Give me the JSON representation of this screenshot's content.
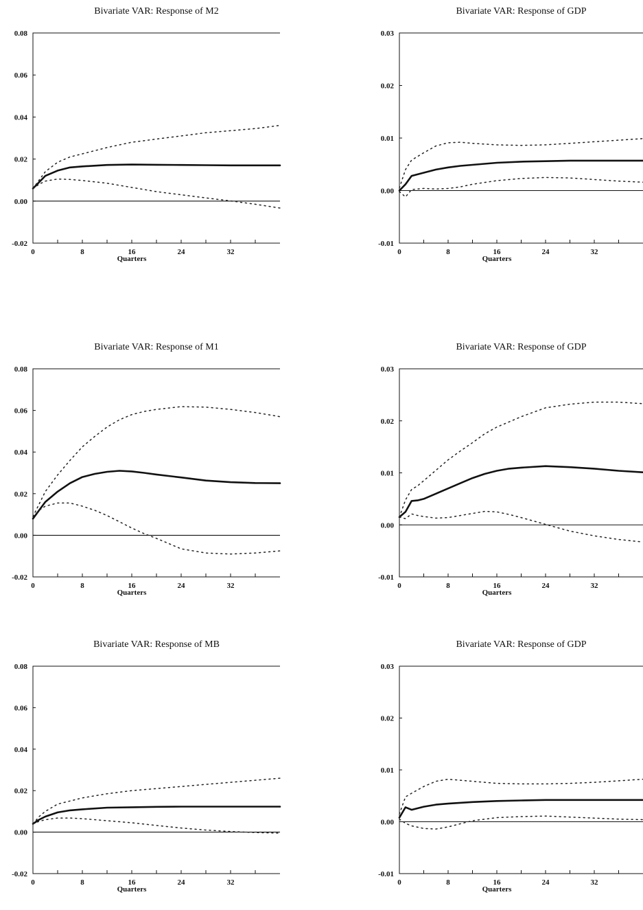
{
  "x_label": "Quarters",
  "chart_data": [
    {
      "type": "line",
      "title": "Bivariate VAR:  Response of M2",
      "xlabel": "Quarters",
      "ylabel": "",
      "xlim": [
        0,
        40
      ],
      "ylim": [
        -0.02,
        0.08
      ],
      "xticks": [
        0,
        8,
        16,
        24,
        32
      ],
      "yticks": [
        "-0.02",
        "0.00",
        "0.02",
        "0.04",
        "0.06",
        "0.08"
      ],
      "x": [
        0,
        1,
        2,
        4,
        6,
        8,
        12,
        16,
        20,
        24,
        28,
        32,
        36,
        40
      ],
      "series": [
        {
          "style": "solid",
          "values": [
            0.006,
            0.009,
            0.012,
            0.0145,
            0.016,
            0.0165,
            0.0172,
            0.0174,
            0.0173,
            0.0172,
            0.0171,
            0.017,
            0.017,
            0.017
          ]
        },
        {
          "style": "dotted",
          "values": [
            0.006,
            0.01,
            0.014,
            0.0185,
            0.021,
            0.0225,
            0.0255,
            0.028,
            0.0295,
            0.031,
            0.0325,
            0.0335,
            0.0345,
            0.036
          ]
        },
        {
          "style": "dotted",
          "values": [
            0.006,
            0.008,
            0.0095,
            0.0105,
            0.0103,
            0.0098,
            0.0085,
            0.0065,
            0.0045,
            0.003,
            0.0015,
            0.0001,
            -0.0015,
            -0.0033
          ]
        }
      ]
    },
    {
      "type": "line",
      "title": "Bivariate VAR:  Response of GDP",
      "xlabel": "Quarters",
      "ylabel": "",
      "xlim": [
        0,
        40
      ],
      "ylim": [
        -0.01,
        0.03
      ],
      "xticks": [
        0,
        8,
        16,
        24,
        32
      ],
      "yticks": [
        "-0.01",
        "0.00",
        "0.01",
        "0.02",
        "0.03"
      ],
      "x": [
        0,
        1,
        2,
        4,
        6,
        8,
        10,
        12,
        16,
        20,
        24,
        28,
        32,
        36,
        40
      ],
      "series": [
        {
          "style": "solid",
          "values": [
            0.0,
            0.0012,
            0.0028,
            0.0034,
            0.004,
            0.0044,
            0.0047,
            0.0049,
            0.0053,
            0.0055,
            0.0056,
            0.0057,
            0.0057,
            0.0057,
            0.0057
          ]
        },
        {
          "style": "dotted",
          "values": [
            0.0005,
            0.004,
            0.0058,
            0.0072,
            0.0085,
            0.0091,
            0.0092,
            0.009,
            0.0087,
            0.0086,
            0.0087,
            0.009,
            0.0093,
            0.0096,
            0.0099
          ]
        },
        {
          "style": "dotted",
          "values": [
            -0.0002,
            -0.0012,
            0.0002,
            0.0004,
            0.0003,
            0.0004,
            0.0007,
            0.0012,
            0.0019,
            0.0023,
            0.0025,
            0.0024,
            0.0021,
            0.0018,
            0.0016
          ]
        }
      ]
    },
    {
      "type": "line",
      "title": "Bivariate VAR:  Response of M1",
      "xlabel": "Quarters",
      "ylabel": "",
      "xlim": [
        0,
        40
      ],
      "ylim": [
        -0.02,
        0.08
      ],
      "xticks": [
        0,
        8,
        16,
        24,
        32
      ],
      "yticks": [
        "-0.02",
        "0.00",
        "0.02",
        "0.04",
        "0.06",
        "0.08"
      ],
      "x": [
        0,
        1,
        2,
        4,
        6,
        8,
        10,
        12,
        14,
        16,
        18,
        20,
        24,
        28,
        32,
        36,
        40
      ],
      "series": [
        {
          "style": "solid",
          "values": [
            0.008,
            0.012,
            0.016,
            0.021,
            0.025,
            0.028,
            0.0295,
            0.0305,
            0.031,
            0.0307,
            0.03,
            0.0292,
            0.0278,
            0.0263,
            0.0255,
            0.0251,
            0.025
          ]
        },
        {
          "style": "dotted",
          "values": [
            0.009,
            0.015,
            0.021,
            0.029,
            0.036,
            0.0425,
            0.0475,
            0.052,
            0.0555,
            0.058,
            0.0595,
            0.0605,
            0.0618,
            0.0616,
            0.0605,
            0.059,
            0.057
          ]
        },
        {
          "style": "dotted",
          "values": [
            0.009,
            0.012,
            0.014,
            0.0155,
            0.0155,
            0.014,
            0.012,
            0.0095,
            0.0065,
            0.0035,
            0.0008,
            -0.0015,
            -0.0065,
            -0.0085,
            -0.009,
            -0.0085,
            -0.0075
          ]
        }
      ]
    },
    {
      "type": "line",
      "title": "Bivariate VAR:  Response of GDP",
      "xlabel": "Quarters",
      "ylabel": "",
      "xlim": [
        0,
        40
      ],
      "ylim": [
        -0.01,
        0.03
      ],
      "xticks": [
        0,
        8,
        16,
        24,
        32
      ],
      "yticks": [
        "-0.01",
        "0.00",
        "0.01",
        "0.02",
        "0.03"
      ],
      "x": [
        0,
        1,
        2,
        3,
        4,
        6,
        8,
        10,
        12,
        14,
        16,
        18,
        20,
        24,
        28,
        32,
        36,
        40
      ],
      "series": [
        {
          "style": "solid",
          "values": [
            0.0015,
            0.0025,
            0.0046,
            0.0047,
            0.005,
            0.006,
            0.007,
            0.008,
            0.009,
            0.0098,
            0.0104,
            0.0108,
            0.011,
            0.0113,
            0.0111,
            0.0108,
            0.0104,
            0.0101
          ]
        },
        {
          "style": "dotted",
          "values": [
            0.0015,
            0.0048,
            0.0068,
            0.0075,
            0.0085,
            0.0105,
            0.0125,
            0.0142,
            0.0158,
            0.0175,
            0.0188,
            0.0198,
            0.0208,
            0.0225,
            0.0232,
            0.0236,
            0.0236,
            0.0233
          ]
        },
        {
          "style": "dotted",
          "values": [
            0.0015,
            0.0012,
            0.0021,
            0.0018,
            0.0016,
            0.0013,
            0.0014,
            0.0018,
            0.0022,
            0.0026,
            0.0025,
            0.002,
            0.0014,
            0.0001,
            -0.0012,
            -0.0021,
            -0.0028,
            -0.0033
          ]
        }
      ]
    },
    {
      "type": "line",
      "title": "Bivariate VAR:  Response of MB",
      "xlabel": "Quarters",
      "ylabel": "",
      "xlim": [
        0,
        40
      ],
      "ylim": [
        -0.02,
        0.08
      ],
      "xticks": [
        0,
        8,
        16,
        24,
        32
      ],
      "yticks": [
        "-0.02",
        "0.00",
        "0.02",
        "0.04",
        "0.06",
        "0.08"
      ],
      "x": [
        0,
        1,
        2,
        4,
        6,
        8,
        12,
        16,
        20,
        24,
        28,
        32,
        36,
        40
      ],
      "series": [
        {
          "style": "solid",
          "values": [
            0.004,
            0.006,
            0.0075,
            0.0095,
            0.0105,
            0.011,
            0.0118,
            0.012,
            0.0122,
            0.0123,
            0.0123,
            0.0123,
            0.0123,
            0.0123
          ]
        },
        {
          "style": "dotted",
          "values": [
            0.004,
            0.0075,
            0.01,
            0.0135,
            0.015,
            0.0165,
            0.0185,
            0.02,
            0.021,
            0.022,
            0.023,
            0.024,
            0.025,
            0.026
          ]
        },
        {
          "style": "dotted",
          "values": [
            0.004,
            0.0052,
            0.006,
            0.0068,
            0.0068,
            0.0065,
            0.0055,
            0.0045,
            0.0032,
            0.002,
            0.001,
            0.0003,
            -0.0002,
            -0.0005
          ]
        }
      ]
    },
    {
      "type": "line",
      "title": "Bivariate VAR:  Response of GDP",
      "xlabel": "Quarters",
      "ylabel": "",
      "xlim": [
        0,
        40
      ],
      "ylim": [
        -0.01,
        0.03
      ],
      "xticks": [
        0,
        8,
        16,
        24,
        32
      ],
      "yticks": [
        "-0.01",
        "0.00",
        "0.01",
        "0.02",
        "0.03"
      ],
      "x": [
        0,
        1,
        2,
        4,
        6,
        8,
        12,
        16,
        20,
        24,
        28,
        32,
        36,
        40
      ],
      "series": [
        {
          "style": "solid",
          "values": [
            0.0008,
            0.0028,
            0.0023,
            0.0029,
            0.0033,
            0.0035,
            0.0038,
            0.004,
            0.0041,
            0.0042,
            0.0042,
            0.0042,
            0.0042,
            0.0042
          ]
        },
        {
          "style": "dotted",
          "values": [
            0.0015,
            0.0048,
            0.0055,
            0.0068,
            0.0078,
            0.0082,
            0.0078,
            0.0074,
            0.0073,
            0.0073,
            0.0074,
            0.0076,
            0.0079,
            0.0082
          ]
        },
        {
          "style": "dotted",
          "values": [
            0.0005,
            -0.0003,
            -0.0008,
            -0.0013,
            -0.0014,
            -0.001,
            0.0002,
            0.0008,
            0.001,
            0.0011,
            0.0009,
            0.0007,
            0.0005,
            0.0004
          ]
        }
      ]
    }
  ]
}
